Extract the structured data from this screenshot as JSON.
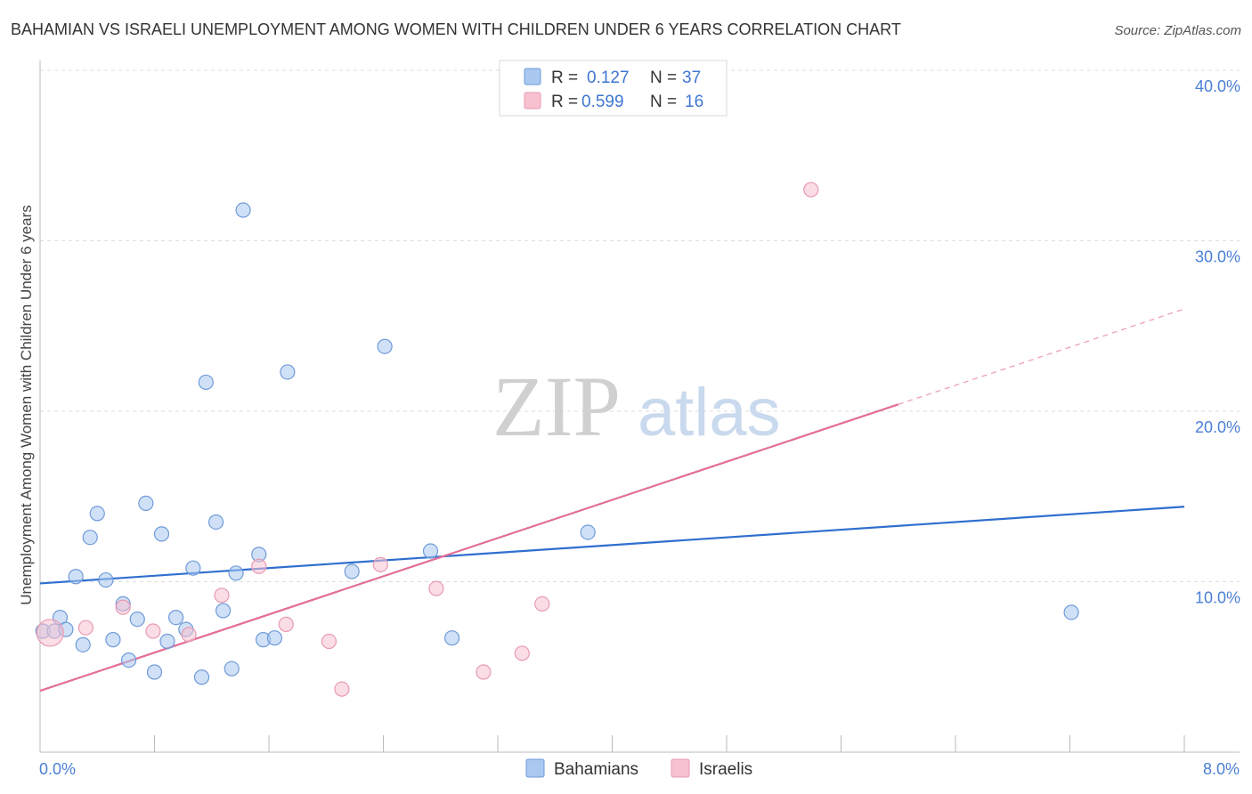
{
  "chart_data": {
    "type": "scatter",
    "title": "BAHAMIAN VS ISRAELI UNEMPLOYMENT AMONG WOMEN WITH CHILDREN UNDER 6 YEARS CORRELATION CHART",
    "source": "Source: ZipAtlas.com",
    "ylabel": "Unemployment Among Women with Children Under 6 years",
    "xlim": [
      0,
      8
    ],
    "ylim": [
      0,
      41
    ],
    "x_tick_labels": [
      "0.0%",
      "8.0%"
    ],
    "y_ticks": [
      10,
      20,
      30,
      40
    ],
    "y_tick_labels": [
      "10.0%",
      "20.0%",
      "30.0%",
      "40.0%"
    ],
    "grid": true,
    "legend_position": "top-center",
    "watermark": {
      "zip": "ZIP",
      "atlas": "atlas"
    },
    "colors": {
      "bahamians_fill": "#aac8f0",
      "bahamians_stroke": "#6f9bd8",
      "bahamians_line": "#2f6fcf",
      "israelis_fill": "#f7c1d0",
      "israelis_stroke": "#e79ab2",
      "israelis_line": "#e26e96"
    },
    "stats": [
      {
        "r_label": "R =",
        "r_value": "0.127",
        "n_label": "N =",
        "n_value": "37"
      },
      {
        "r_label": "R =",
        "r_value": "0.599",
        "n_label": "N =",
        "n_value": "16"
      }
    ],
    "series": [
      {
        "name": "Bahamians",
        "points": [
          [
            0.02,
            7.1
          ],
          [
            0.1,
            7.1
          ],
          [
            0.14,
            7.9
          ],
          [
            0.18,
            7.2
          ],
          [
            0.25,
            10.3
          ],
          [
            0.3,
            6.3
          ],
          [
            0.35,
            12.6
          ],
          [
            0.4,
            14.0
          ],
          [
            0.46,
            10.1
          ],
          [
            0.51,
            6.6
          ],
          [
            0.58,
            8.7
          ],
          [
            0.62,
            5.4
          ],
          [
            0.68,
            7.8
          ],
          [
            0.74,
            14.6
          ],
          [
            0.8,
            4.7
          ],
          [
            0.85,
            12.8
          ],
          [
            0.89,
            6.5
          ],
          [
            0.95,
            7.9
          ],
          [
            1.02,
            7.2
          ],
          [
            1.07,
            10.8
          ],
          [
            1.13,
            4.4
          ],
          [
            1.16,
            21.7
          ],
          [
            1.23,
            13.5
          ],
          [
            1.28,
            8.3
          ],
          [
            1.34,
            4.9
          ],
          [
            1.37,
            10.5
          ],
          [
            1.42,
            31.8
          ],
          [
            1.53,
            11.6
          ],
          [
            1.56,
            6.6
          ],
          [
            1.64,
            6.7
          ],
          [
            1.73,
            22.3
          ],
          [
            2.18,
            10.6
          ],
          [
            2.41,
            23.8
          ],
          [
            2.73,
            11.8
          ],
          [
            2.88,
            6.7
          ],
          [
            3.83,
            12.9
          ],
          [
            7.21,
            8.2
          ]
        ],
        "trend": {
          "x": [
            0,
            8
          ],
          "y": [
            9.9,
            14.4
          ]
        }
      },
      {
        "name": "Israelis",
        "points": [
          [
            0.07,
            7.0
          ],
          [
            0.32,
            7.3
          ],
          [
            0.58,
            8.5
          ],
          [
            0.79,
            7.1
          ],
          [
            1.04,
            6.9
          ],
          [
            1.27,
            9.2
          ],
          [
            1.53,
            10.9
          ],
          [
            1.72,
            7.5
          ],
          [
            2.02,
            6.5
          ],
          [
            2.11,
            3.7
          ],
          [
            2.38,
            11.0
          ],
          [
            2.77,
            9.6
          ],
          [
            3.1,
            4.7
          ],
          [
            3.37,
            5.8
          ],
          [
            3.51,
            8.7
          ],
          [
            5.39,
            33.0
          ]
        ],
        "trend": {
          "x": [
            0,
            6.0
          ],
          "y": [
            3.6,
            20.4
          ]
        },
        "trend_extension": {
          "x": [
            6.0,
            8.0
          ],
          "y": [
            20.4,
            26.0
          ]
        }
      }
    ]
  }
}
